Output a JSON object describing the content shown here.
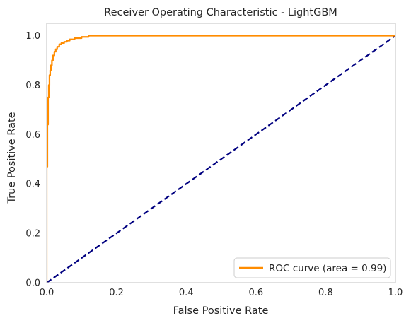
{
  "chart_data": {
    "type": "line",
    "title": "Receiver Operating Characteristic - LightGBM",
    "xlabel": "False Positive Rate",
    "ylabel": "True Positive Rate",
    "xlim": [
      0.0,
      1.0
    ],
    "ylim": [
      0.0,
      1.05
    ],
    "xticks": [
      "0.0",
      "0.2",
      "0.4",
      "0.6",
      "0.8",
      "1.0"
    ],
    "yticks": [
      "0.0",
      "0.2",
      "0.4",
      "0.6",
      "0.8",
      "1.0"
    ],
    "grid": false,
    "legend_position": "lower right",
    "series": [
      {
        "name": "ROC curve (area = 0.99)",
        "color": "#ff8c00",
        "style": "solid",
        "x": [
          0.0,
          0.0,
          0.002,
          0.002,
          0.004,
          0.004,
          0.006,
          0.006,
          0.008,
          0.008,
          0.01,
          0.01,
          0.012,
          0.012,
          0.015,
          0.015,
          0.018,
          0.018,
          0.022,
          0.022,
          0.026,
          0.026,
          0.03,
          0.03,
          0.036,
          0.036,
          0.042,
          0.042,
          0.05,
          0.05,
          0.058,
          0.058,
          0.066,
          0.066,
          0.08,
          0.08,
          0.1,
          0.1,
          0.12,
          0.12,
          0.16,
          1.0
        ],
        "y": [
          0.0,
          0.47,
          0.47,
          0.64,
          0.64,
          0.75,
          0.75,
          0.8,
          0.8,
          0.84,
          0.84,
          0.86,
          0.86,
          0.88,
          0.88,
          0.9,
          0.9,
          0.92,
          0.92,
          0.935,
          0.935,
          0.945,
          0.945,
          0.955,
          0.955,
          0.965,
          0.965,
          0.97,
          0.97,
          0.975,
          0.975,
          0.98,
          0.98,
          0.985,
          0.985,
          0.99,
          0.99,
          0.995,
          0.995,
          1.0,
          1.0,
          1.0
        ]
      },
      {
        "name": "",
        "color": "#000080",
        "style": "dashed",
        "x": [
          0.0,
          1.0
        ],
        "y": [
          0.0,
          1.0
        ]
      }
    ]
  }
}
